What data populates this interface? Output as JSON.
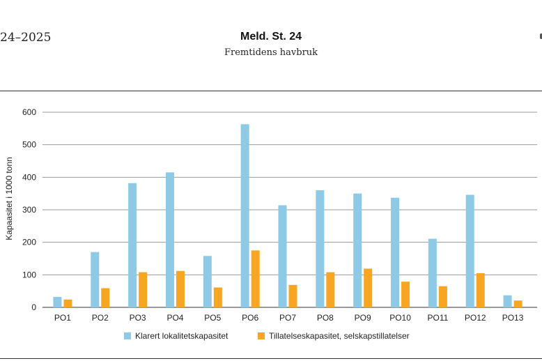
{
  "header": {
    "left_text": "24–2025",
    "title": "Meld. St. 24",
    "subtitle": "Fremtidens havbruk"
  },
  "chart_data": {
    "type": "bar",
    "categories": [
      "PO1",
      "PO2",
      "PO3",
      "PO4",
      "PO5",
      "PO6",
      "PO7",
      "PO8",
      "PO9",
      "PO10",
      "PO11",
      "PO12",
      "PO13"
    ],
    "series": [
      {
        "name": "Klarert lokalitetskapasitet",
        "color": "#8ecae6",
        "values": [
          32,
          170,
          382,
          415,
          158,
          563,
          314,
          360,
          350,
          337,
          211,
          346,
          37
        ]
      },
      {
        "name": "Tillatelseskapasitet, selskapstillatelser",
        "color": "#f6a623",
        "values": [
          24,
          59,
          108,
          112,
          61,
          175,
          69,
          108,
          119,
          79,
          65,
          105,
          21
        ]
      }
    ],
    "ylabel": "Kapaasitet i 1000 tonn",
    "xlabel": "",
    "ylim": [
      0,
      600
    ],
    "yticks": [
      0,
      100,
      200,
      300,
      400,
      500,
      600
    ],
    "grid": true,
    "legend": "bottom"
  }
}
